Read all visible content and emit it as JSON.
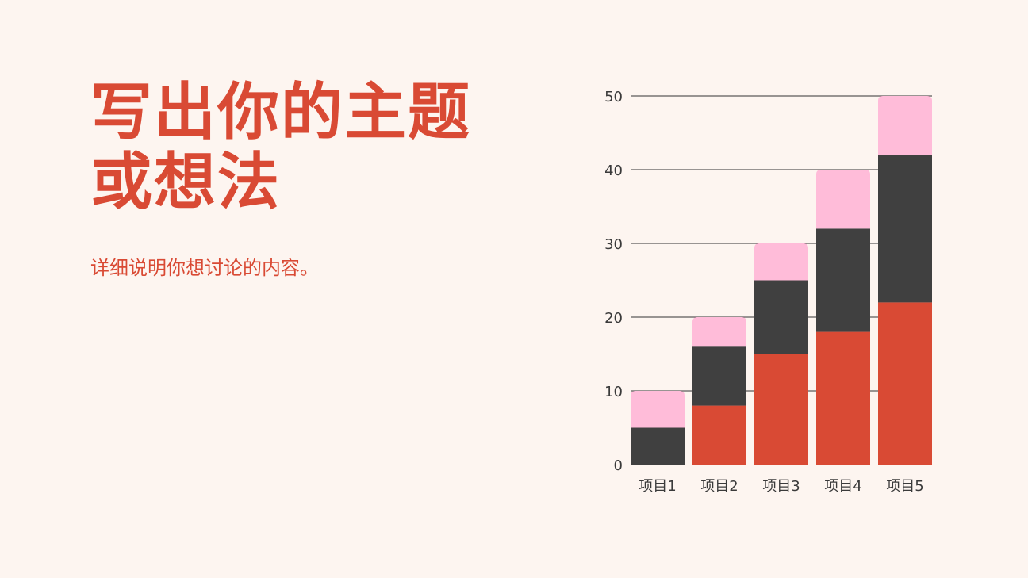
{
  "slide": {
    "title_line1": "写出你的主题",
    "title_line2": "或想法",
    "subtitle": "详细说明你想讨论的内容。"
  },
  "colors": {
    "background": "#fdf5f0",
    "accent": "#d94a34",
    "series_1": "#d94a34",
    "series_2": "#404040",
    "series_3": "#ffbcd9",
    "axis_text": "#3a3a3a",
    "gridline": "#333333"
  },
  "chart_data": {
    "type": "bar",
    "stacked": true,
    "categories": [
      "项目1",
      "项目2",
      "项目3",
      "项目4",
      "项目5"
    ],
    "series": [
      {
        "values": [
          0,
          8,
          15,
          18,
          22
        ]
      },
      {
        "values": [
          5,
          8,
          10,
          14,
          20
        ]
      },
      {
        "values": [
          5,
          4,
          5,
          8,
          8
        ]
      }
    ],
    "totals": [
      10,
      20,
      30,
      40,
      50
    ],
    "ylim": [
      0,
      50
    ],
    "yticks": [
      0,
      10,
      20,
      30,
      40,
      50
    ],
    "grid": true,
    "legend": "none"
  }
}
